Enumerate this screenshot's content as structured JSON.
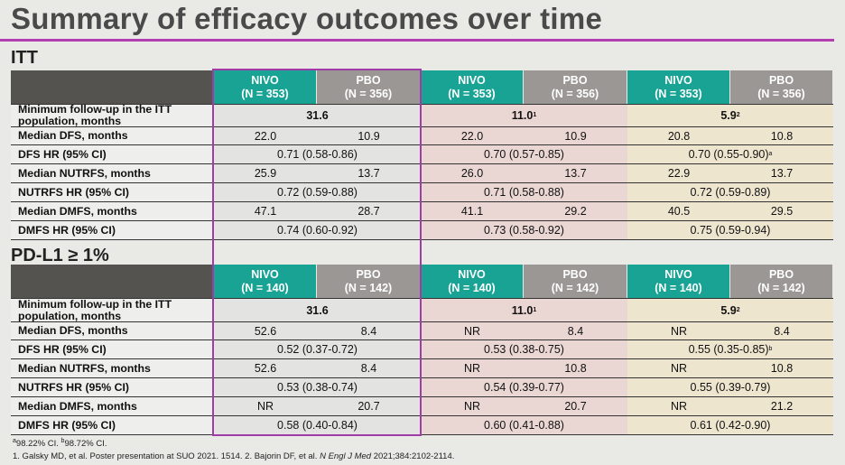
{
  "title": "Summary of efficacy outcomes over time",
  "sections": [
    {
      "name": "ITT",
      "headers": [
        {
          "arm": "NIVO",
          "n": "(N = 353)"
        },
        {
          "arm": "PBO",
          "n": "(N = 356)"
        },
        {
          "arm": "NIVO",
          "n": "(N = 353)"
        },
        {
          "arm": "PBO",
          "n": "(N = 356)"
        },
        {
          "arm": "NIVO",
          "n": "(N = 353)"
        },
        {
          "arm": "PBO",
          "n": "(N = 356)"
        }
      ],
      "rows": [
        {
          "label": "Minimum follow-up in the ITT population, months",
          "type": "merged",
          "values": [
            "31.6",
            "11.0",
            "5.9"
          ],
          "sups": [
            "",
            "1",
            "2"
          ]
        },
        {
          "label": "Median DFS, months",
          "type": "split",
          "values": [
            "22.0",
            "10.9",
            "22.0",
            "10.9",
            "20.8",
            "10.8"
          ]
        },
        {
          "label": "DFS HR (95% CI)",
          "type": "merged",
          "values": [
            "0.71 (0.58-0.86)",
            "0.70 (0.57-0.85)",
            "0.70 (0.55-0.90)"
          ],
          "sups": [
            "",
            "",
            "a"
          ]
        },
        {
          "label": "Median NUTRFS, months",
          "type": "split",
          "values": [
            "25.9",
            "13.7",
            "26.0",
            "13.7",
            "22.9",
            "13.7"
          ]
        },
        {
          "label": "NUTRFS HR (95% CI)",
          "type": "merged",
          "values": [
            "0.72 (0.59-0.88)",
            "0.71 (0.58-0.88)",
            "0.72 (0.59-0.89)"
          ],
          "sups": [
            "",
            "",
            ""
          ]
        },
        {
          "label": "Median DMFS, months",
          "type": "split",
          "values": [
            "47.1",
            "28.7",
            "41.1",
            "29.2",
            "40.5",
            "29.5"
          ]
        },
        {
          "label": "DMFS HR (95% CI)",
          "type": "merged",
          "values": [
            "0.74 (0.60-0.92)",
            "0.73 (0.58-0.92)",
            "0.75 (0.59-0.94)"
          ],
          "sups": [
            "",
            "",
            ""
          ]
        }
      ]
    },
    {
      "name": "PD-L1 ≥ 1%",
      "headers": [
        {
          "arm": "NIVO",
          "n": "(N = 140)"
        },
        {
          "arm": "PBO",
          "n": "(N = 142)"
        },
        {
          "arm": "NIVO",
          "n": "(N = 140)"
        },
        {
          "arm": "PBO",
          "n": "(N = 142)"
        },
        {
          "arm": "NIVO",
          "n": "(N = 140)"
        },
        {
          "arm": "PBO",
          "n": "(N = 142)"
        }
      ],
      "rows": [
        {
          "label": "Minimum follow-up in the ITT population, months",
          "type": "merged",
          "values": [
            "31.6",
            "11.0",
            "5.9"
          ],
          "sups": [
            "",
            "1",
            "2"
          ]
        },
        {
          "label": "Median DFS, months",
          "type": "split",
          "values": [
            "52.6",
            "8.4",
            "NR",
            "8.4",
            "NR",
            "8.4"
          ]
        },
        {
          "label": "DFS HR (95% CI)",
          "type": "merged",
          "values": [
            "0.52 (0.37-0.72)",
            "0.53 (0.38-0.75)",
            "0.55 (0.35-0.85)"
          ],
          "sups": [
            "",
            "",
            "b"
          ]
        },
        {
          "label": "Median NUTRFS, months",
          "type": "split",
          "values": [
            "52.6",
            "8.4",
            "NR",
            "10.8",
            "NR",
            "10.8"
          ]
        },
        {
          "label": "NUTRFS HR (95% CI)",
          "type": "merged",
          "values": [
            "0.53 (0.38-0.74)",
            "0.54 (0.39-0.77)",
            "0.55 (0.39-0.79)"
          ],
          "sups": [
            "",
            "",
            ""
          ]
        },
        {
          "label": "Median DMFS, months",
          "type": "split",
          "values": [
            "NR",
            "20.7",
            "NR",
            "20.7",
            "NR",
            "21.2"
          ]
        },
        {
          "label": "DMFS HR (95% CI)",
          "type": "merged",
          "values": [
            "0.58 (0.40-0.84)",
            "0.60 (0.41-0.88)",
            "0.61 (0.42-0.90)"
          ],
          "sups": [
            "",
            "",
            ""
          ]
        }
      ]
    }
  ],
  "footnotes": {
    "line1_a_sup": "a",
    "line1_a_text": "98.22% CI. ",
    "line1_b_sup": "b",
    "line1_b_text": "98.72% CI.",
    "line2_pre": "1. Galsky MD, et al. Poster presentation at SUO 2021. 1514. 2. Bajorin DF, et al. ",
    "line2_journal": "N Engl J Med",
    "line2_post": " 2021;384:2102-2114."
  }
}
